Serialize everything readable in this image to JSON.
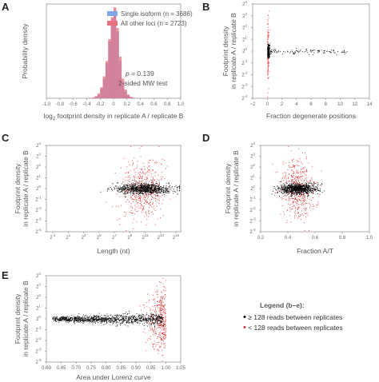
{
  "panels": {
    "A": "A",
    "B": "B",
    "C": "C",
    "D": "D",
    "E": "E"
  },
  "chart_data": [
    {
      "panel": "A",
      "type": "histogram",
      "xlabel": "log2 footprint density in replicate A / replicate B",
      "ylabel": "Probability density",
      "xlim": [
        -1.0,
        1.0
      ],
      "xticks": [
        "-1.0",
        "-0.8",
        "-0.6",
        "-0.4",
        "-0.2",
        "0",
        "0.2",
        "0.4",
        "0.6",
        "0.8",
        "1.0"
      ],
      "bin_width": 0.04,
      "series": [
        {
          "name": "Single isoform (n = 3686)",
          "color": "#7fa6e8",
          "centers": [
            -0.3,
            -0.26,
            -0.22,
            -0.18,
            -0.14,
            -0.1,
            -0.06,
            -0.02,
            0.02,
            0.06,
            0.1,
            0.14,
            0.18,
            0.22,
            0.26,
            0.3
          ],
          "density": [
            0.05,
            0.12,
            0.3,
            0.9,
            1.8,
            3.2,
            5.2,
            7.2,
            8.0,
            6.1,
            3.4,
            1.5,
            0.6,
            0.25,
            0.1,
            0.04
          ]
        },
        {
          "name": "All other loci (n = 2723)",
          "color": "#e8707f",
          "centers": [
            -0.34,
            -0.3,
            -0.26,
            -0.22,
            -0.18,
            -0.14,
            -0.1,
            -0.06,
            -0.02,
            0.02,
            0.06,
            0.1,
            0.14,
            0.18,
            0.22,
            0.26,
            0.3,
            0.34
          ],
          "density": [
            0.04,
            0.08,
            0.2,
            0.45,
            1.0,
            2.0,
            3.4,
            5.4,
            7.4,
            8.3,
            6.4,
            3.8,
            1.8,
            0.8,
            0.35,
            0.15,
            0.06,
            0.03
          ]
        }
      ],
      "ylim": [
        0,
        8.6
      ],
      "annotation": {
        "p": "p",
        "p_value": " = 0.139",
        "test": "2-sided MW test"
      }
    },
    {
      "panel": "B",
      "type": "scatter",
      "xlabel": "Fraction degenerate positions",
      "ylabel_line1": "Footprint density",
      "ylabel_line2": "in replicate A / replicate B",
      "xlim": [
        -2,
        14
      ],
      "xticks": [
        "−2",
        "0",
        "2",
        "4",
        "6",
        "8",
        "10",
        "12",
        "14"
      ],
      "ylim": [
        -4,
        4
      ],
      "yticks": [
        "2",
        "2",
        "2",
        "2",
        "2",
        "2",
        "2",
        "2",
        "2"
      ],
      "yexp": [
        "-4",
        "-3",
        "-2",
        "-1",
        "0",
        "1",
        "2",
        "3",
        "4"
      ]
    },
    {
      "panel": "C",
      "type": "scatter",
      "xlabel": "Length (nt)",
      "ylabel_line1": "Footprint density",
      "ylabel_line2": "in replicate A / replicate B",
      "log_x": true,
      "xticks": [
        "2",
        "2",
        "2",
        "2",
        "2",
        "2",
        "2",
        "2",
        "2"
      ],
      "xexp": [
        "-1",
        "1",
        "3",
        "5",
        "7",
        "9",
        "11",
        "13",
        "15"
      ],
      "ylim": [
        -4,
        4
      ],
      "yticks": [
        "2",
        "2",
        "2",
        "2",
        "2",
        "2",
        "2",
        "2",
        "2"
      ],
      "yexp": [
        "-4",
        "-3",
        "-2",
        "-1",
        "0",
        "1",
        "2",
        "3",
        "4"
      ]
    },
    {
      "panel": "D",
      "type": "scatter",
      "xlabel": "Fraction A/T",
      "ylabel_line1": "Footprint density",
      "ylabel_line2": "in replicate A / replicate B",
      "xlim": [
        0.2,
        1.0
      ],
      "xticks": [
        "0.2",
        "0.4",
        "0.6",
        "0.8",
        "1.0"
      ],
      "ylim": [
        -4,
        4
      ],
      "yticks": [
        "2",
        "2",
        "2",
        "2",
        "2",
        "2",
        "2",
        "2",
        "2"
      ],
      "yexp": [
        "-4",
        "-3",
        "-2",
        "-1",
        "0",
        "1",
        "2",
        "3",
        "4"
      ]
    },
    {
      "panel": "E",
      "type": "scatter",
      "xlabel": "Area under Lorenz curve",
      "ylabel_line1": "Footprint density",
      "ylabel_line2": "in replicate A / replicate B",
      "xlim": [
        0.6,
        1.05
      ],
      "xticks": [
        "0.60",
        "0.65",
        "0.70",
        "0.75",
        "0.80",
        "0.85",
        "0.90",
        "0.95",
        "1.00",
        "1.05"
      ],
      "ylim": [
        -4,
        4
      ],
      "yticks": [
        "2",
        "2",
        "2",
        "2",
        "2",
        "2",
        "2",
        "2",
        "2"
      ],
      "yexp": [
        "-4",
        "-3",
        "-2",
        "-1",
        "0",
        "1",
        "2",
        "3",
        "4"
      ]
    }
  ],
  "legend_be": {
    "title": "Legend (b–e):",
    "items": [
      {
        "symbol": "•",
        "label": " ≥ 128 reads between replicates",
        "color": "#000000"
      },
      {
        "symbol": "•",
        "label": " < 128 reads between replicates",
        "color": "#e0302f"
      }
    ]
  },
  "colors": {
    "high_reads": "#000000",
    "low_reads": "#e0302f",
    "axis": "#888888"
  }
}
